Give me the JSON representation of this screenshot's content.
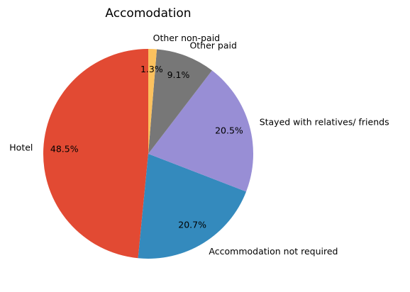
{
  "chart_data": {
    "type": "pie",
    "title": "Accomodation",
    "slices": [
      {
        "label": "Hotel",
        "value": 48.5,
        "pct_label": "48.5%",
        "color": "#e24a33"
      },
      {
        "label": "Accommodation not required",
        "value": 20.7,
        "pct_label": "20.7%",
        "color": "#348abd"
      },
      {
        "label": "Stayed with relatives/ friends",
        "value": 20.5,
        "pct_label": "20.5%",
        "color": "#988ed5"
      },
      {
        "label": "Other paid",
        "value": 9.1,
        "pct_label": "9.1%",
        "color": "#777777"
      },
      {
        "label": "Other non-paid",
        "value": 1.3,
        "pct_label": "1.3%",
        "color": "#fbc15e"
      }
    ],
    "start_angle_deg": 90,
    "direction": "counterclockwise",
    "legend": "none"
  }
}
